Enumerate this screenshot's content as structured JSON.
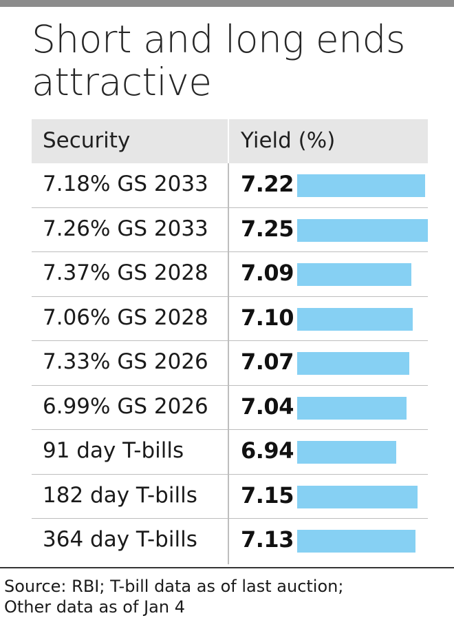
{
  "title_line1": "Short and long ends",
  "title_line2": "attractive",
  "source_line1": "Source: RBI; T-bill data as of last auction;",
  "source_line2": "Other data as of Jan 4",
  "colors": {
    "bar": "#86d0f3",
    "header_bg": "#e6e6e6",
    "top_rule": "#8c8c8c"
  },
  "chart_data": {
    "type": "bar",
    "title": "Short and long ends attractive",
    "columns": [
      "Security",
      "Yield (%)"
    ],
    "categories": [
      "7.18% GS 2033",
      "7.26% GS 2033",
      "7.37% GS 2028",
      "7.06% GS 2028",
      "7.33% GS 2026",
      "6.99% GS 2026",
      "91 day T-bills",
      "182 day T-bills",
      "364 day T-bills"
    ],
    "labels": [
      "7.22",
      "7.25",
      "7.09",
      "7.10",
      "7.07",
      "7.04",
      "6.94",
      "7.15",
      "7.13"
    ],
    "values": [
      7.22,
      7.25,
      7.09,
      7.1,
      7.07,
      7.04,
      6.94,
      7.15,
      7.13
    ],
    "orientation": "horizontal",
    "xlim": [
      5.97,
      7.25
    ]
  }
}
